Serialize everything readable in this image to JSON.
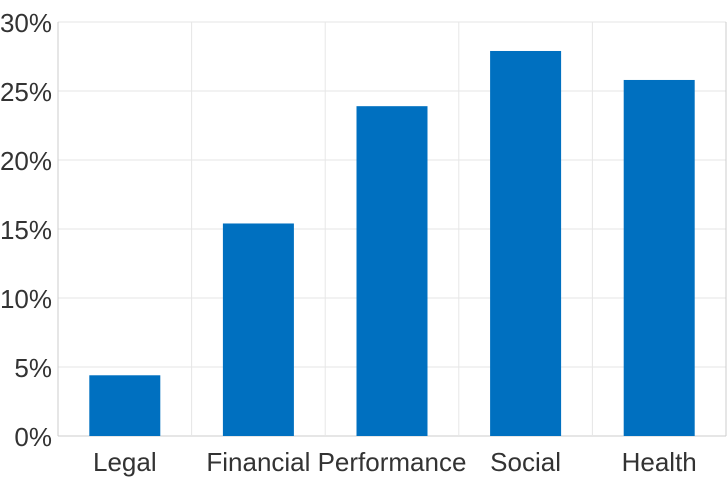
{
  "chart_data": {
    "type": "bar",
    "categories": [
      "Legal",
      "Financial",
      "Performance",
      "Social",
      "Health"
    ],
    "values": [
      4.4,
      15.4,
      23.9,
      27.9,
      25.8
    ],
    "ylim": [
      0,
      30
    ],
    "yticks": [
      0,
      5,
      10,
      15,
      20,
      25,
      30
    ],
    "ytick_labels": [
      "0%",
      "5%",
      "10%",
      "15%",
      "20%",
      "25%",
      "30%"
    ],
    "title": "",
    "xlabel": "",
    "ylabel": "",
    "grid": true,
    "bar_color": "#0070c0"
  }
}
